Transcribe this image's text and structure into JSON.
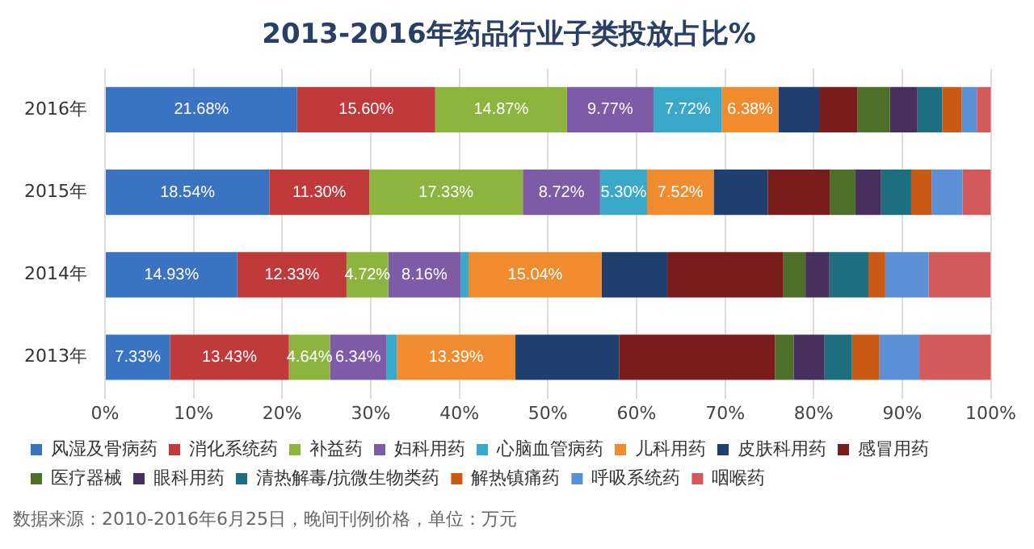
{
  "chart_data": {
    "type": "bar",
    "orientation": "horizontal",
    "stacked": true,
    "title": "2013-2016年药品行业子类投放占比%",
    "categories": [
      "2016年",
      "2015年",
      "2014年",
      "2013年"
    ],
    "series": [
      {
        "name": "风湿及骨病药",
        "color": "#3a73c2",
        "values": [
          21.68,
          18.54,
          14.93,
          7.33
        ],
        "value_labels": [
          "21.68%",
          "18.54%",
          "14.93%",
          "7.33%"
        ]
      },
      {
        "name": "消化系统药",
        "color": "#c0393b",
        "values": [
          15.6,
          11.3,
          12.33,
          13.43
        ],
        "value_labels": [
          "15.60%",
          "11.30%",
          "12.33%",
          "13.43%"
        ]
      },
      {
        "name": "补益药",
        "color": "#8db43e",
        "values": [
          14.87,
          17.33,
          4.72,
          4.64
        ],
        "value_labels": [
          "14.87%",
          "17.33%",
          "4.72%",
          "4.64%"
        ]
      },
      {
        "name": "妇科用药",
        "color": "#7d5ba6",
        "values": [
          9.77,
          8.72,
          8.16,
          6.34
        ],
        "value_labels": [
          "9.77%",
          "8.72%",
          "8.16%",
          "6.34%"
        ]
      },
      {
        "name": "心脑血管病药",
        "color": "#3aa8c8",
        "values": [
          7.72,
          5.3,
          0.9,
          1.2
        ],
        "value_labels": [
          "7.72%",
          "5.30%",
          null,
          null
        ]
      },
      {
        "name": "儿科用药",
        "color": "#f08c2e",
        "values": [
          6.38,
          7.52,
          15.04,
          13.39
        ],
        "value_labels": [
          "6.38%",
          "7.52%",
          "15.04%",
          "13.39%"
        ]
      },
      {
        "name": "皮肤科用药",
        "color": "#1f3f6e",
        "values": [
          4.6,
          6.1,
          7.4,
          11.7
        ]
      },
      {
        "name": "感冒用药",
        "color": "#7a1c1c",
        "values": [
          4.3,
          7.0,
          13.1,
          17.6
        ]
      },
      {
        "name": "医疗器械",
        "color": "#4e6f2a",
        "values": [
          3.7,
          2.9,
          2.5,
          2.1
        ]
      },
      {
        "name": "眼科用药",
        "color": "#47305e",
        "values": [
          3.1,
          2.9,
          2.7,
          3.5
        ]
      },
      {
        "name": "清热解毒/抗微生物类药",
        "color": "#1d6e7e",
        "values": [
          2.8,
          3.4,
          4.4,
          3.1
        ]
      },
      {
        "name": "解热镇痛药",
        "color": "#c95a14",
        "values": [
          2.2,
          2.3,
          1.9,
          3.1
        ]
      },
      {
        "name": "呼吸系统药",
        "color": "#5b8fd6",
        "values": [
          1.7,
          3.5,
          4.9,
          4.5
        ]
      },
      {
        "name": "咽喉药",
        "color": "#d25a5a",
        "values": [
          1.6,
          3.2,
          7.0,
          8.1
        ]
      }
    ],
    "xlim": [
      0,
      100
    ],
    "xticks": [
      {
        "value": 0,
        "label": "0%"
      },
      {
        "value": 10,
        "label": "10%"
      },
      {
        "value": 20,
        "label": "20%"
      },
      {
        "value": 30,
        "label": "30%"
      },
      {
        "value": 40,
        "label": "40%"
      },
      {
        "value": 50,
        "label": "50%"
      },
      {
        "value": 60,
        "label": "60%"
      },
      {
        "value": 70,
        "label": "70%"
      },
      {
        "value": 80,
        "label": "80%"
      },
      {
        "value": 90,
        "label": "90%"
      },
      {
        "value": 100,
        "label": "100%"
      }
    ],
    "grid": "x",
    "legend": "bottom",
    "annotations": [
      "数据来源：2010-2016年6月25日，晚间刊例价格，单位：万元"
    ]
  }
}
